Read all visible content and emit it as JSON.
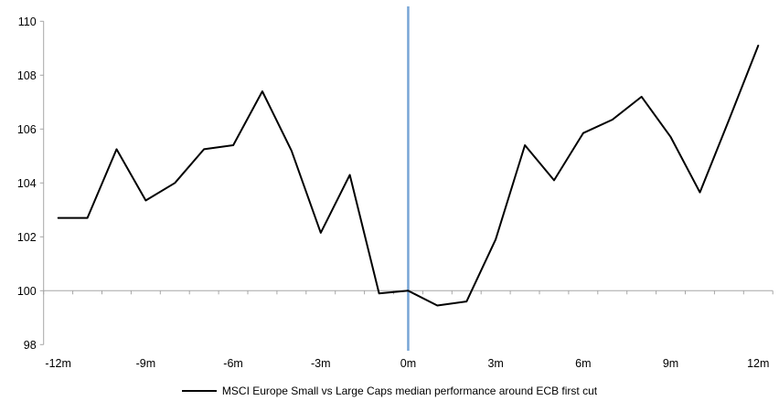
{
  "chart_data": {
    "type": "line",
    "title": "",
    "xlabel": "",
    "ylabel": "",
    "x": [
      -12,
      -11,
      -10,
      -9,
      -8,
      -7,
      -6,
      -5,
      -4,
      -3,
      -2,
      -1,
      0,
      1,
      2,
      3,
      4,
      5,
      6,
      7,
      8,
      9,
      10,
      11,
      12
    ],
    "series": [
      {
        "name": "MSCI Europe Small vs Large Caps median performance around ECB first cut",
        "color": "#000000",
        "values": [
          102.7,
          102.7,
          105.25,
          103.35,
          104.0,
          105.25,
          105.4,
          107.4,
          105.2,
          102.15,
          104.3,
          99.9,
          100.0,
          99.45,
          99.6,
          101.9,
          105.4,
          104.1,
          105.85,
          106.35,
          107.2,
          105.7,
          103.65,
          106.35,
          109.1
        ]
      }
    ],
    "ylim": [
      98,
      110
    ],
    "xlim": [
      -12.5,
      12.5
    ],
    "y_ticks": [
      98,
      100,
      102,
      104,
      106,
      108,
      110
    ],
    "x_tick_positions": [
      -12,
      -9,
      -6,
      -3,
      0,
      3,
      6,
      9,
      12
    ],
    "x_tick_labels": [
      "-12m",
      "-9m",
      "-6m",
      "-3m",
      "0m",
      "3m",
      "6m",
      "9m",
      "12m"
    ],
    "baseline_value": 100,
    "event_line": {
      "x": 0,
      "color": "#77A5D6"
    },
    "axis_color": "#A6A6A6",
    "grid": "off",
    "legend_position": "bottom-center"
  },
  "legend": {
    "label": "MSCI Europe Small vs Large Caps median performance around ECB first cut"
  }
}
